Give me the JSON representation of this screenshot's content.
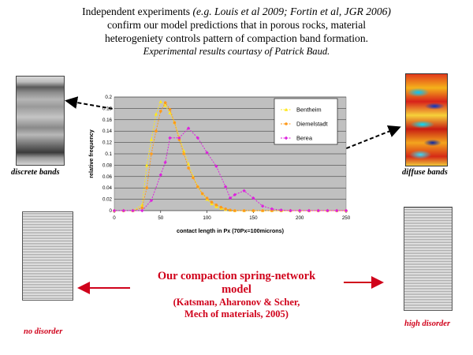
{
  "header": {
    "line1_plain": "Independent experiments ",
    "line1_italic": "(e.g. Louis et al 2009; Fortin et al, JGR 2006)",
    "line2": "confirm our model predictions that in porous rocks, material",
    "line3": "heterogeniety controls pattern of compaction band formation.",
    "line4": "Experimental results courtasy of Patrick Baud."
  },
  "captions": {
    "discrete": "discrete bands",
    "diffuse": "diffuse bands",
    "no_disorder": "no disorder",
    "high_disorder": "high disorder"
  },
  "center": {
    "title_line1": "Our compaction spring-network",
    "title_line2": "model",
    "ref_line1": "(Katsman, Aharonov & Scher,",
    "ref_line2": "Mech of materials, 2005)"
  },
  "colors": {
    "Bentheim": "#ffe81a",
    "Diemelstadt": "#ff9a1a",
    "Berea": "#dd22dd",
    "annotation_red": "#d0021b",
    "plot_bg": "#c0c0c0"
  },
  "chart_data": {
    "type": "line",
    "title": "",
    "xlabel": "contact length in Px (70Px=100microns)",
    "ylabel": "relative frequency",
    "xlim": [
      0,
      250
    ],
    "ylim": [
      0,
      0.2
    ],
    "xticks": [
      0,
      50,
      100,
      150,
      200,
      250
    ],
    "yticks": [
      0,
      0.02,
      0.04,
      0.06,
      0.08,
      0.1,
      0.12,
      0.14,
      0.16,
      0.18,
      0.2
    ],
    "grid": true,
    "legend_position": "top-right",
    "series": [
      {
        "name": "Bentheim",
        "x": [
          0,
          10,
          20,
          30,
          35,
          40,
          45,
          50,
          55,
          60,
          65,
          70,
          75,
          80,
          85,
          90,
          95,
          100,
          105,
          110,
          115,
          120,
          125,
          130,
          140,
          150,
          160,
          170,
          180,
          190,
          200,
          210,
          220,
          230,
          240,
          250
        ],
        "y": [
          0,
          0,
          0,
          0.01,
          0.08,
          0.125,
          0.17,
          0.192,
          0.185,
          0.172,
          0.155,
          0.13,
          0.105,
          0.082,
          0.06,
          0.043,
          0.03,
          0.02,
          0.012,
          0.007,
          0.004,
          0.002,
          0.001,
          0,
          0,
          0,
          0,
          0,
          0,
          0,
          0,
          0,
          0,
          0,
          0,
          0
        ]
      },
      {
        "name": "Diemelstadt",
        "x": [
          0,
          10,
          20,
          30,
          35,
          40,
          45,
          50,
          55,
          60,
          65,
          70,
          75,
          80,
          85,
          90,
          95,
          100,
          105,
          110,
          115,
          120,
          125,
          130,
          140,
          150,
          160,
          170,
          180,
          190,
          200,
          210,
          220,
          230,
          240,
          250
        ],
        "y": [
          0,
          0,
          0,
          0.005,
          0.04,
          0.1,
          0.14,
          0.175,
          0.19,
          0.178,
          0.155,
          0.125,
          0.1,
          0.075,
          0.058,
          0.042,
          0.03,
          0.022,
          0.015,
          0.01,
          0.006,
          0.003,
          0.001,
          0,
          0,
          0,
          0,
          0,
          0,
          0,
          0,
          0,
          0,
          0,
          0,
          0
        ]
      },
      {
        "name": "Berea",
        "x": [
          0,
          10,
          20,
          30,
          40,
          50,
          55,
          60,
          70,
          80,
          90,
          100,
          110,
          120,
          125,
          130,
          140,
          150,
          160,
          170,
          180,
          190,
          200,
          210,
          220,
          230,
          240,
          250
        ],
        "y": [
          0,
          0,
          0,
          0,
          0.018,
          0.063,
          0.085,
          0.128,
          0.128,
          0.145,
          0.128,
          0.102,
          0.078,
          0.042,
          0.022,
          0.028,
          0.035,
          0.022,
          0.008,
          0.003,
          0.001,
          0,
          0,
          0,
          0,
          0,
          0,
          0
        ]
      }
    ]
  }
}
